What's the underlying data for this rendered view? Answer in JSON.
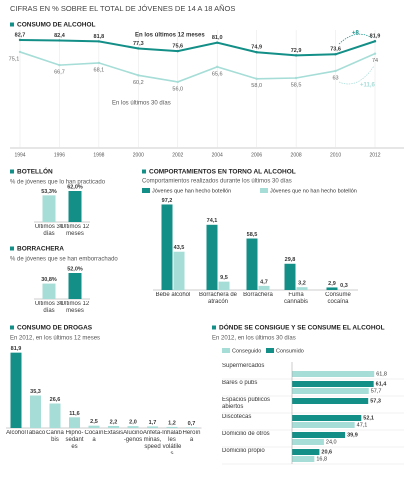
{
  "title": "CIFRAS EN % SOBRE EL TOTAL DE JÓVENES DE 14 A 18 AÑOS",
  "chart_data": [
    {
      "type": "line",
      "title": "CONSUMO DE ALCOHOL",
      "x": [
        1994,
        1996,
        1998,
        2000,
        2002,
        2004,
        2006,
        2008,
        2010,
        2012
      ],
      "xlim": [
        1994,
        2012
      ],
      "xticks": [
        1994,
        1996,
        1998,
        2000,
        2002,
        2004,
        2006,
        2008,
        2010,
        2012
      ],
      "series": [
        {
          "name": "En los últimos 12 meses",
          "color": "#138f88",
          "values": [
            82.7,
            82.4,
            81.8,
            77.3,
            75.6,
            81.0,
            74.9,
            72.9,
            73.6,
            81.9
          ],
          "value_labels": [
            "82,7",
            "82,4",
            "81,8",
            "77,3",
            "75,6",
            "81,0",
            "74,9",
            "72,9",
            "73,6",
            "81,9"
          ]
        },
        {
          "name": "En los últimos 30 días",
          "color": "#a6ddd7",
          "values": [
            75.1,
            66.7,
            68.1,
            60.2,
            56.0,
            65.6,
            58.0,
            58.5,
            63,
            74
          ],
          "value_labels": [
            "75,1",
            "66,7",
            "68,1",
            "60,2",
            "56,0",
            "65,6",
            "58,0",
            "58,5",
            "63",
            "74"
          ]
        }
      ],
      "annotations": [
        {
          "text": "+8",
          "color": "#138f88"
        },
        {
          "text": "+11,6",
          "color": "#a6ddd7"
        }
      ]
    },
    {
      "type": "bar",
      "title": "BOTELLÓN",
      "subtitle": "% de jóvenes que lo han practicado",
      "categories": [
        "Últimos 30 días",
        "Últimos 12 meses"
      ],
      "values": [
        53.3,
        62.0
      ],
      "value_labels": [
        "53,3%",
        "62,0%"
      ],
      "colors": [
        "#a6ddd7",
        "#138f88"
      ]
    },
    {
      "type": "bar",
      "title": "BORRACHERA",
      "subtitle": "% de jóvenes que se han emborrachado",
      "categories": [
        "Últimos 30 días",
        "Últimos 12 meses"
      ],
      "values": [
        30.8,
        52.0
      ],
      "value_labels": [
        "30,8%",
        "52,0%"
      ],
      "colors": [
        "#a6ddd7",
        "#138f88"
      ]
    },
    {
      "type": "bar",
      "title": "COMPORTAMIENTOS EN TORNO AL ALCOHOL",
      "subtitle": "Comportamientos realizados durante los últimos 30 días",
      "categories": [
        "Bebe alcohol",
        "Borrachera de atracón",
        "Borrachera",
        "Fuma cannabis",
        "Consume cocaína"
      ],
      "series": [
        {
          "name": "Jóvenes que han hecho botellón",
          "color": "#138f88",
          "values": [
            97.2,
            74.1,
            58.5,
            29.8,
            2.9
          ],
          "value_labels": [
            "97,2",
            "74,1",
            "58,5",
            "29,8",
            "2,9"
          ]
        },
        {
          "name": "Jóvenes que no han hecho botellón",
          "color": "#a6ddd7",
          "values": [
            43.5,
            9.5,
            4.7,
            3.2,
            0.3
          ],
          "value_labels": [
            "43,5",
            "9,5",
            "4,7",
            "3,2",
            "0,3"
          ]
        }
      ]
    },
    {
      "type": "bar",
      "title": "CONSUMO DE DROGAS",
      "subtitle": "En 2012, en los últimos 12 meses",
      "categories": [
        "Alcohol",
        "Tabaco",
        "Cannabis",
        "Hipno-sedantes",
        "Cocaína",
        "Éxtasis",
        "Alucinó-genos",
        "Anfeta-minas, speed",
        "Inhalables volátiles",
        "Heroína"
      ],
      "values": [
        81.9,
        35.3,
        26.6,
        11.6,
        2.5,
        2.2,
        2.0,
        1.7,
        1.2,
        0.7
      ],
      "value_labels": [
        "81,9",
        "35,3",
        "26,6",
        "11,6",
        "2,5",
        "2,2",
        "2,0",
        "1,7",
        "1,2",
        "0,7"
      ],
      "colors": [
        "#138f88",
        "#a6ddd7",
        "#a6ddd7",
        "#a6ddd7",
        "#a6ddd7",
        "#a6ddd7",
        "#a6ddd7",
        "#a6ddd7",
        "#a6ddd7",
        "#a6ddd7"
      ]
    },
    {
      "type": "barh",
      "title": "DÓNDE SE CONSIGUE Y SE CONSUME EL ALCOHOL",
      "subtitle": "En 2012, en los últimos 30 días",
      "categories": [
        "Supermercados",
        "Bares o pubs",
        "Espacios públicos abiertos",
        "Discotecas",
        "Domicilio de otros",
        "Domicilio propio"
      ],
      "series": [
        {
          "name": "Conseguido",
          "color": "#a6ddd7",
          "values": [
            61.8,
            57.7,
            null,
            47.1,
            24.0,
            16.8
          ],
          "value_labels": [
            "61,8",
            "57,7",
            null,
            "47,1",
            "24,0",
            "16,8"
          ]
        },
        {
          "name": "Consumido",
          "color": "#138f88",
          "values": [
            null,
            61.4,
            57.3,
            52.1,
            39.9,
            20.6
          ],
          "value_labels": [
            null,
            "61,4",
            "57,3",
            "52,1",
            "39,9",
            "20,6"
          ]
        }
      ]
    }
  ]
}
